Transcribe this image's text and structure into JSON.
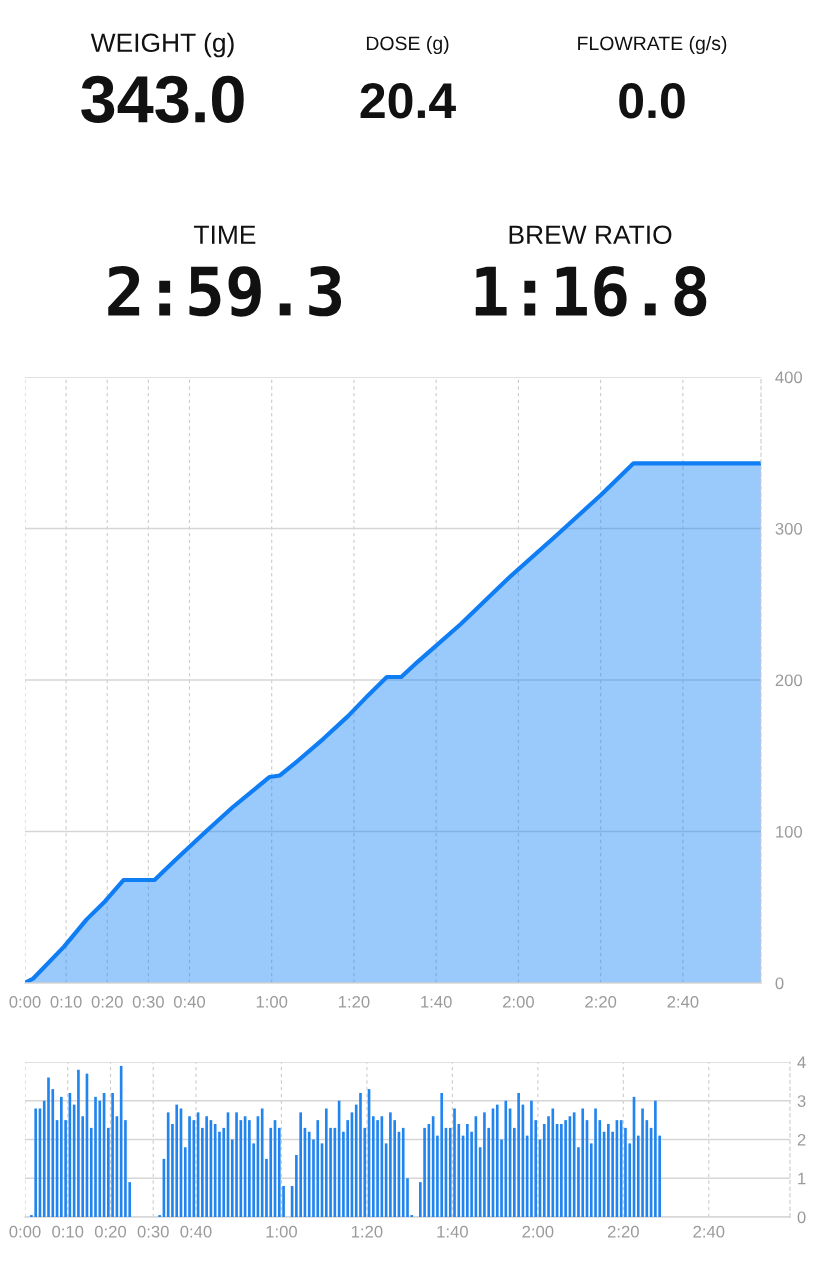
{
  "chart_data": [
    {
      "type": "other",
      "annotations": [
        "WEIGHT (g)",
        "343.0",
        "DOSE (g)",
        "20.4",
        "FLOWRATE (g/s)",
        "0.0",
        "TIME",
        "2:59.3",
        "BREW RATIO",
        "1:16.8"
      ]
    },
    {
      "type": "area",
      "x": [
        0,
        2,
        9.5,
        15,
        19.5,
        24,
        31.5,
        36.5,
        44,
        50.5,
        55,
        59.5,
        62,
        66.5,
        72.5,
        78.5,
        83.5,
        88,
        91.5,
        95.5,
        106,
        117.5,
        129.5,
        140,
        148,
        179
      ],
      "values": [
        0,
        3,
        24,
        42,
        54,
        68,
        68,
        81,
        100,
        116,
        126,
        136,
        137,
        147,
        161,
        176,
        190,
        202,
        202,
        212,
        237,
        267,
        296,
        322,
        343,
        343
      ],
      "color": "#0f7ef5",
      "xlim": [
        0,
        179
      ],
      "xticks": [
        {
          "value": 0,
          "label": "0:00"
        },
        {
          "value": 10,
          "label": "0:10"
        },
        {
          "value": 20,
          "label": "0:20"
        },
        {
          "value": 30,
          "label": "0:30"
        },
        {
          "value": 40,
          "label": "0:40"
        },
        {
          "value": 60,
          "label": "1:00"
        },
        {
          "value": 80,
          "label": "1:20"
        },
        {
          "value": 100,
          "label": "1:40"
        },
        {
          "value": 120,
          "label": "2:00"
        },
        {
          "value": 140,
          "label": "2:20"
        },
        {
          "value": 160,
          "label": "2:40"
        }
      ],
      "ylim": [
        0,
        400
      ],
      "yticks": [
        0,
        100,
        200,
        300,
        400
      ],
      "grid": true
    },
    {
      "type": "bar",
      "x": [
        1.5,
        2.5,
        3.5,
        4.5,
        5.5,
        6.5,
        7.5,
        8.5,
        9.5,
        10.5,
        11.5,
        12.5,
        13.5,
        14.5,
        15.5,
        16.5,
        17.5,
        18.5,
        19.5,
        20.5,
        21.5,
        22.5,
        23.5,
        24.5,
        31.5,
        32.5,
        33.5,
        34.5,
        35.5,
        36.5,
        37.5,
        38.5,
        39.5,
        40.5,
        41.5,
        42.5,
        43.5,
        44.5,
        45.5,
        46.5,
        47.5,
        48.5,
        49.5,
        50.5,
        51.5,
        52.5,
        53.5,
        54.5,
        55.5,
        56.5,
        57.5,
        58.5,
        59.5,
        60.5,
        62.5,
        63.5,
        64.5,
        65.5,
        66.5,
        67.5,
        68.5,
        69.5,
        70.5,
        71.5,
        72.5,
        73.5,
        74.5,
        75.5,
        76.5,
        77.5,
        78.5,
        79.5,
        80.5,
        81.5,
        82.5,
        83.5,
        84.5,
        85.5,
        86.5,
        87.5,
        88.5,
        89.5,
        90.5,
        92.5,
        93.5,
        94.5,
        95.5,
        96.5,
        97.5,
        98.5,
        99.5,
        100.5,
        101.5,
        102.5,
        103.5,
        104.5,
        105.5,
        106.5,
        107.5,
        108.5,
        109.5,
        110.5,
        111.5,
        112.5,
        113.5,
        114.5,
        115.5,
        116.5,
        117.5,
        118.5,
        119.5,
        120.5,
        121.5,
        122.5,
        123.5,
        124.5,
        125.5,
        126.5,
        127.5,
        128.5,
        129.5,
        130.5,
        131.5,
        132.5,
        133.5,
        134.5,
        135.5,
        136.5,
        137.5,
        138.5,
        139.5,
        140.5,
        141.5,
        142.5,
        143.5,
        144.5,
        145.5,
        146.5,
        147.5,
        148.5
      ],
      "values": [
        0.05,
        2.8,
        2.8,
        3.0,
        3.6,
        3.3,
        2.5,
        3.1,
        2.5,
        3.2,
        2.9,
        3.8,
        2.6,
        3.7,
        2.3,
        3.1,
        3.0,
        3.2,
        2.3,
        3.2,
        2.6,
        3.9,
        2.5,
        0.9,
        0.05,
        1.5,
        2.7,
        2.4,
        2.9,
        2.8,
        1.8,
        2.6,
        2.5,
        2.7,
        2.3,
        2.6,
        2.5,
        2.4,
        2.2,
        2.3,
        2.7,
        2.0,
        2.7,
        2.5,
        2.6,
        2.5,
        1.9,
        2.6,
        2.8,
        1.5,
        2.3,
        2.5,
        2.3,
        0.8,
        0.8,
        1.6,
        2.7,
        2.3,
        2.2,
        2.0,
        2.5,
        1.9,
        2.8,
        2.3,
        2.3,
        3.0,
        2.2,
        2.5,
        2.7,
        2.9,
        3.2,
        2.3,
        3.3,
        2.6,
        2.5,
        2.6,
        1.9,
        2.7,
        2.5,
        2.2,
        2.3,
        1.0,
        0.05,
        0.9,
        2.3,
        2.4,
        2.6,
        2.1,
        3.2,
        2.3,
        2.3,
        2.8,
        2.4,
        2.1,
        2.4,
        2.2,
        2.6,
        1.8,
        2.7,
        2.3,
        2.8,
        2.9,
        2.0,
        3.0,
        2.8,
        2.3,
        3.2,
        2.9,
        2.1,
        3.0,
        2.5,
        2.0,
        2.4,
        2.6,
        2.8,
        2.4,
        2.4,
        2.5,
        2.6,
        2.7,
        1.8,
        2.8,
        2.5,
        1.9,
        2.8,
        2.5,
        2.2,
        2.4,
        2.2,
        2.5,
        2.5,
        2.3,
        1.9,
        3.1,
        2.1,
        2.8,
        2.5,
        2.3,
        3.0,
        2.1
      ],
      "color": "#2184ef",
      "xlim": [
        0,
        179
      ],
      "xticks": [
        {
          "value": 0,
          "label": "0:00"
        },
        {
          "value": 10,
          "label": "0:10"
        },
        {
          "value": 20,
          "label": "0:20"
        },
        {
          "value": 30,
          "label": "0:30"
        },
        {
          "value": 40,
          "label": "0:40"
        },
        {
          "value": 60,
          "label": "1:00"
        },
        {
          "value": 80,
          "label": "1:20"
        },
        {
          "value": 100,
          "label": "1:40"
        },
        {
          "value": 120,
          "label": "2:00"
        },
        {
          "value": 140,
          "label": "2:20"
        },
        {
          "value": 160,
          "label": "2:40"
        }
      ],
      "ylim": [
        0,
        4
      ],
      "yticks": [
        0,
        1,
        2,
        3,
        4
      ],
      "grid": true
    }
  ]
}
